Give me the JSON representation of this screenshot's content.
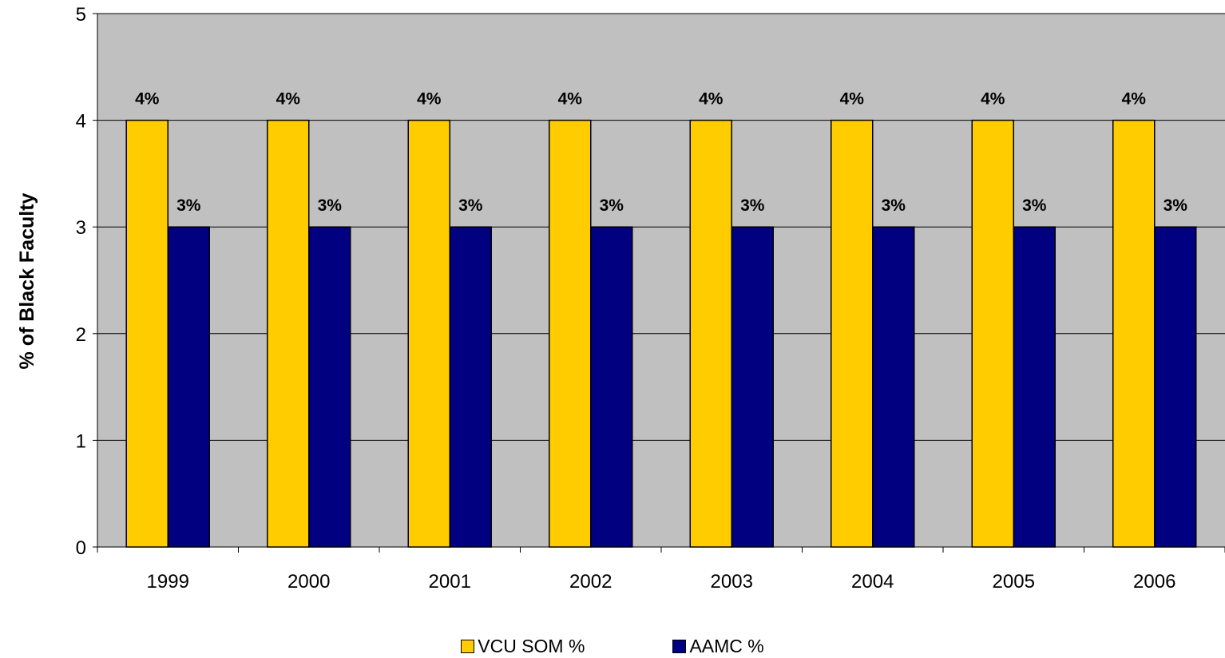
{
  "chart_data": {
    "type": "bar",
    "categories": [
      "1999",
      "2000",
      "2001",
      "2002",
      "2003",
      "2004",
      "2005",
      "2006"
    ],
    "series": [
      {
        "name": "VCU SOM %",
        "values": [
          4,
          4,
          4,
          4,
          4,
          4,
          4,
          4
        ],
        "labels": [
          "4%",
          "4%",
          "4%",
          "4%",
          "4%",
          "4%",
          "4%",
          "4%"
        ],
        "color": "#FFCC00"
      },
      {
        "name": "AAMC %",
        "values": [
          3,
          3,
          3,
          3,
          3,
          3,
          3,
          3
        ],
        "labels": [
          "3%",
          "3%",
          "3%",
          "3%",
          "3%",
          "3%",
          "3%",
          "3%"
        ],
        "color": "#000080"
      }
    ],
    "ylabel": "% of Black Faculty",
    "xlabel": "",
    "ylim": [
      0,
      5
    ],
    "yticks": [
      "0",
      "1",
      "2",
      "3",
      "4",
      "5"
    ],
    "grid": true,
    "plot_background": "#C0C0C0",
    "legend_position": "bottom"
  }
}
